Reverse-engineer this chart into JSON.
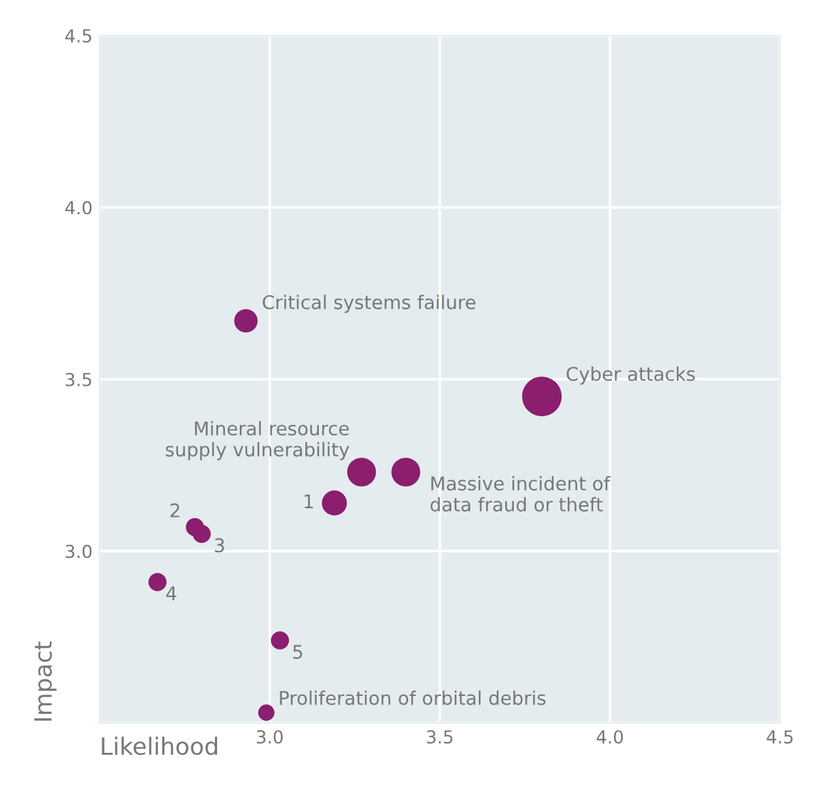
{
  "chart_data": {
    "type": "bubble",
    "xlabel": "Likelihood",
    "ylabel": "Impact",
    "xlim": [
      2.5,
      4.5
    ],
    "ylim": [
      2.5,
      4.5
    ],
    "xticks": [
      {
        "value": 2.5,
        "label": null
      },
      {
        "value": 3,
        "label": "3.0"
      },
      3.5,
      {
        "value": 4,
        "label": "4.0"
      },
      4.5
    ],
    "yticks": [
      {
        "value": 2.5,
        "label": null
      },
      {
        "value": 3,
        "label": "3.0"
      },
      3.5,
      {
        "value": 4,
        "label": "4.0"
      },
      4.5
    ],
    "grid": true,
    "series": [
      {
        "color": "#8b1e6e",
        "x": [
          2.93,
          3.8,
          3.27,
          3.4,
          3.19,
          2.78,
          2.8,
          2.67,
          3.03,
          2.99
        ],
        "values": [
          3.67,
          3.45,
          3.23,
          3.23,
          3.14,
          3.07,
          3.05,
          2.91,
          2.74,
          2.53
        ],
        "sizes": [
          0.35,
          1,
          0.53,
          0.53,
          0.4,
          0.21,
          0.21,
          0.21,
          0.21,
          0.17
        ]
      }
    ],
    "annotations": [
      {
        "text": "Critical systems failure",
        "x": 2.93,
        "y": 3.67
      },
      {
        "text": "Cyber attacks",
        "x": 3.8,
        "y": 3.45
      },
      {
        "text": "Mineral resource\nsupply vulnerability",
        "x": 3.27,
        "y": 3.23
      },
      {
        "text": "Massive incident of\ndata fraud or theft",
        "x": 3.4,
        "y": 3.23
      },
      {
        "text": "1",
        "x": 3.19,
        "y": 3.14
      },
      {
        "text": "2",
        "x": 2.78,
        "y": 3.07
      },
      {
        "text": "3",
        "x": 2.8,
        "y": 3.05
      },
      {
        "text": "4",
        "x": 2.67,
        "y": 2.91
      },
      {
        "text": "5",
        "x": 3.03,
        "y": 2.74
      },
      {
        "text": "Proliferation of orbital debris",
        "x": 2.99,
        "y": 2.53
      }
    ]
  }
}
